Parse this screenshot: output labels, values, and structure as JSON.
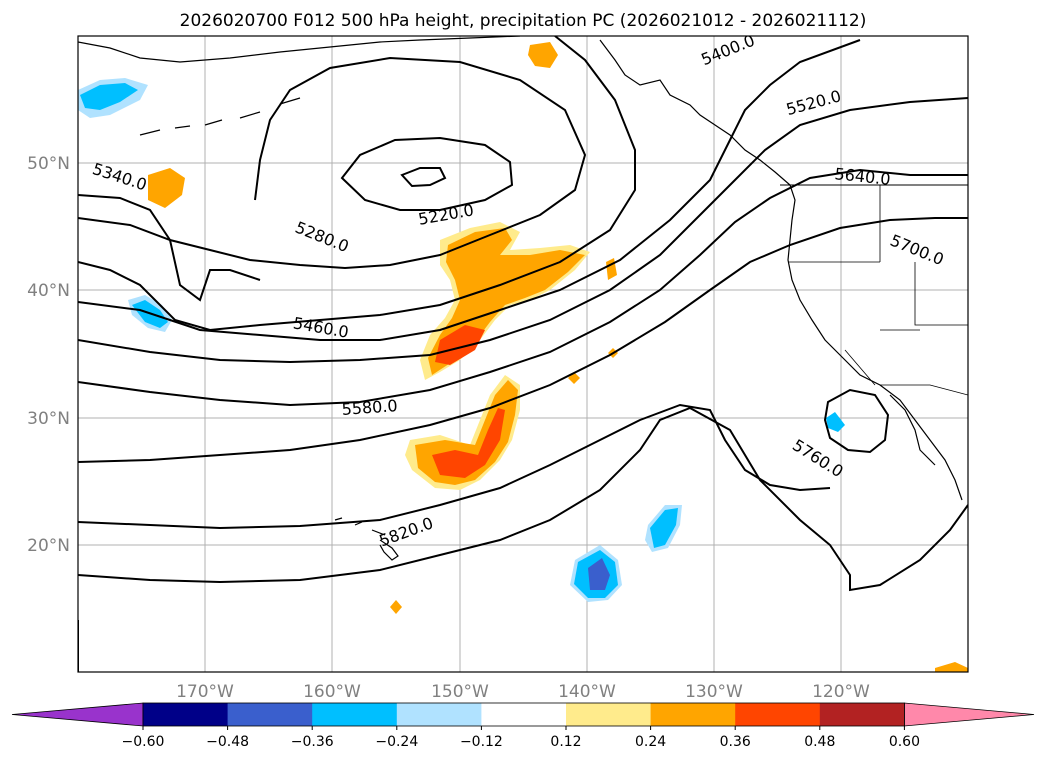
{
  "chart_data": {
    "type": "heatmap",
    "title": "2026020700 F012 500 hPa height, precipitation PC (2026021012 - 2026021112)",
    "map": {
      "lon_range": [
        -180,
        -110
      ],
      "lat_range": [
        10,
        60
      ],
      "lat_tick_labels": [
        "50°N",
        "40°N",
        "30°N",
        "20°N"
      ],
      "lon_tick_labels": [
        "170°W",
        "160°W",
        "150°W",
        "140°W",
        "130°W",
        "120°W"
      ],
      "grid": true
    },
    "contour_labels": [
      "5400.0",
      "5520.0",
      "5340.0",
      "5220.0",
      "5640.0",
      "5280.0",
      "5700.0",
      "5460.0",
      "5580.0",
      "5760.0",
      "5820.0"
    ],
    "contour_levels": [
      5220,
      5280,
      5340,
      5400,
      5460,
      5520,
      5580,
      5640,
      5700,
      5760,
      5820
    ],
    "colorbar": {
      "extend": "both",
      "tick_labels": [
        "−0.60",
        "−0.48",
        "−0.36",
        "−0.24",
        "−0.12",
        "0.12",
        "0.24",
        "0.36",
        "0.48",
        "0.60"
      ],
      "colors": [
        "#9933cc",
        "#000088",
        "#3a5fcd",
        "#00bfff",
        "#b0e2ff",
        "#ffffff",
        "#ffeb8c",
        "#ffa500",
        "#ff4500",
        "#b22222",
        "#ff88aa"
      ]
    }
  }
}
